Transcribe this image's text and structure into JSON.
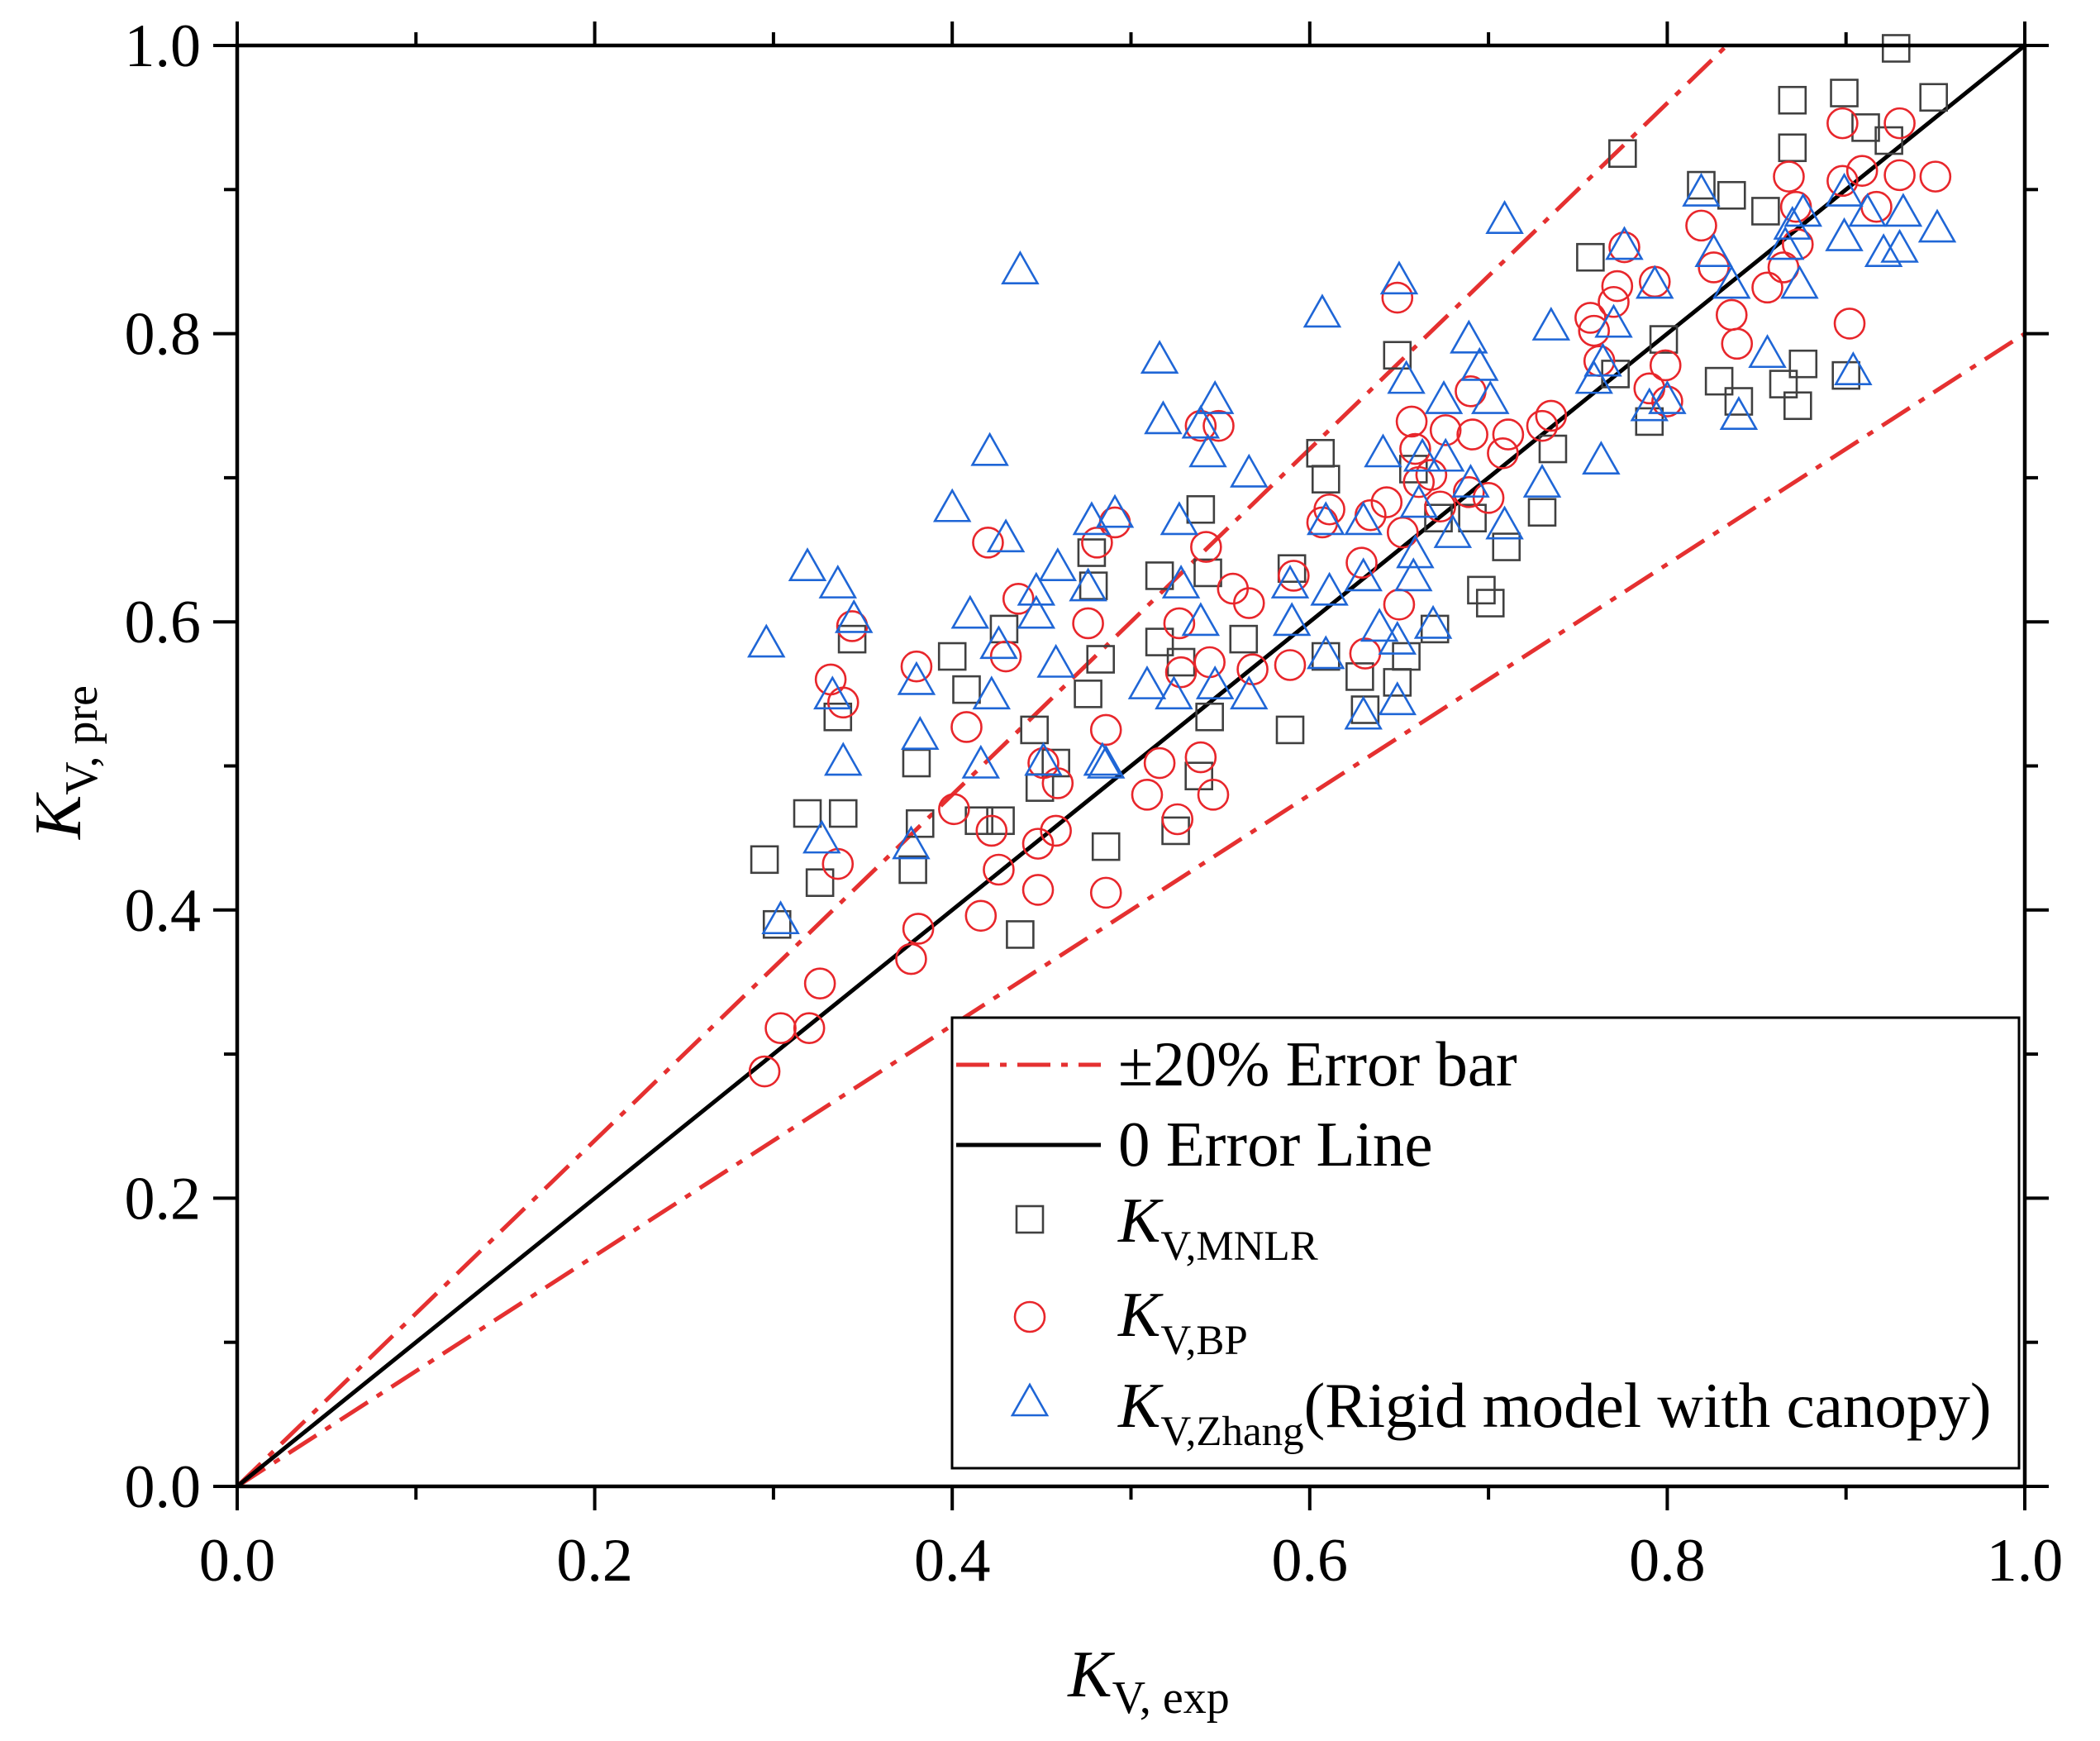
{
  "chart_data": {
    "type": "scatter",
    "xlabel": {
      "main": "K",
      "sub": "V, exp"
    },
    "ylabel": {
      "main": "K",
      "sub": "V, pre"
    },
    "xlim": [
      0.0,
      1.0
    ],
    "ylim": [
      0.0,
      1.0
    ],
    "xticks": {
      "values": [
        0.0,
        0.2,
        0.4,
        0.6,
        0.8,
        1.0
      ],
      "labels": [
        "0.0",
        "0.2",
        "0.4",
        "0.6",
        "0.8",
        "1.0"
      ]
    },
    "yticks": {
      "values": [
        0.0,
        0.2,
        0.4,
        0.6,
        0.8,
        1.0
      ],
      "labels": [
        "0.0",
        "0.2",
        "0.4",
        "0.6",
        "0.8",
        "1.0"
      ]
    },
    "minor_tick_step": 0.1,
    "grid": false,
    "legend": "bottom-right",
    "reference_lines": [
      {
        "label": "±20% Error bar",
        "color": "#e53030",
        "slopes": [
          1.2,
          0.8
        ]
      },
      {
        "label": "0 Error Line",
        "color": "#000000",
        "slopes": [
          1.0
        ]
      }
    ],
    "series": [
      {
        "label": {
          "main": "K",
          "sub": "V,MNLR"
        },
        "marker": "square",
        "color": "#404040",
        "points": [
          [
            0.295,
            0.435
          ],
          [
            0.302,
            0.39
          ],
          [
            0.319,
            0.467
          ],
          [
            0.326,
            0.419
          ],
          [
            0.339,
            0.467
          ],
          [
            0.344,
            0.588
          ],
          [
            0.336,
            0.534
          ],
          [
            0.38,
            0.502
          ],
          [
            0.378,
            0.428
          ],
          [
            0.382,
            0.46
          ],
          [
            0.4,
            0.576
          ],
          [
            0.408,
            0.553
          ],
          [
            0.415,
            0.462
          ],
          [
            0.427,
            0.462
          ],
          [
            0.429,
            0.595
          ],
          [
            0.438,
            0.383
          ],
          [
            0.446,
            0.525
          ],
          [
            0.449,
            0.485
          ],
          [
            0.458,
            0.502
          ],
          [
            0.476,
            0.55
          ],
          [
            0.479,
            0.625
          ],
          [
            0.483,
            0.574
          ],
          [
            0.486,
            0.444
          ],
          [
            0.478,
            0.648
          ],
          [
            0.516,
            0.632
          ],
          [
            0.516,
            0.586
          ],
          [
            0.525,
            0.455
          ],
          [
            0.528,
            0.572
          ],
          [
            0.539,
            0.678
          ],
          [
            0.543,
            0.634
          ],
          [
            0.538,
            0.493
          ],
          [
            0.544,
            0.534
          ],
          [
            0.563,
            0.588
          ],
          [
            0.589,
            0.525
          ],
          [
            0.59,
            0.637
          ],
          [
            0.606,
            0.717
          ],
          [
            0.609,
            0.699
          ],
          [
            0.609,
            0.576
          ],
          [
            0.628,
            0.562
          ],
          [
            0.631,
            0.539
          ],
          [
            0.649,
            0.785
          ],
          [
            0.649,
            0.558
          ],
          [
            0.654,
            0.576
          ],
          [
            0.658,
            0.706
          ],
          [
            0.67,
            0.595
          ],
          [
            0.672,
            0.672
          ],
          [
            0.691,
            0.672
          ],
          [
            0.696,
            0.622
          ],
          [
            0.701,
            0.613
          ],
          [
            0.71,
            0.652
          ],
          [
            0.73,
            0.676
          ],
          [
            0.736,
            0.72
          ],
          [
            0.757,
            0.853
          ],
          [
            0.775,
            0.925
          ],
          [
            0.771,
            0.772
          ],
          [
            0.79,
            0.739
          ],
          [
            0.798,
            0.796
          ],
          [
            0.819,
            0.903
          ],
          [
            0.829,
            0.767
          ],
          [
            0.836,
            0.896
          ],
          [
            0.84,
            0.753
          ],
          [
            0.855,
            0.885
          ],
          [
            0.865,
            0.765
          ],
          [
            0.87,
            0.962
          ],
          [
            0.87,
            0.929
          ],
          [
            0.873,
            0.75
          ],
          [
            0.876,
            0.779
          ],
          [
            0.899,
            0.967
          ],
          [
            0.9,
            0.771
          ],
          [
            0.911,
            0.943
          ],
          [
            0.928,
            0.998
          ],
          [
            0.924,
            0.934
          ],
          [
            0.949,
            0.964
          ]
        ]
      },
      {
        "label": {
          "main": "K",
          "sub": "V,BP"
        },
        "marker": "circle",
        "color": "#e8262b",
        "points": [
          [
            0.295,
            0.288
          ],
          [
            0.304,
            0.318
          ],
          [
            0.32,
            0.318
          ],
          [
            0.326,
            0.349
          ],
          [
            0.332,
            0.56
          ],
          [
            0.336,
            0.432
          ],
          [
            0.339,
            0.544
          ],
          [
            0.344,
            0.597
          ],
          [
            0.377,
            0.366
          ],
          [
            0.381,
            0.387
          ],
          [
            0.38,
            0.569
          ],
          [
            0.401,
            0.47
          ],
          [
            0.408,
            0.527
          ],
          [
            0.416,
            0.396
          ],
          [
            0.42,
            0.655
          ],
          [
            0.422,
            0.455
          ],
          [
            0.426,
            0.428
          ],
          [
            0.43,
            0.576
          ],
          [
            0.437,
            0.616
          ],
          [
            0.448,
            0.414
          ],
          [
            0.448,
            0.446
          ],
          [
            0.451,
            0.502
          ],
          [
            0.458,
            0.455
          ],
          [
            0.459,
            0.488
          ],
          [
            0.476,
            0.599
          ],
          [
            0.481,
            0.655
          ],
          [
            0.486,
            0.525
          ],
          [
            0.486,
            0.412
          ],
          [
            0.491,
            0.669
          ],
          [
            0.509,
            0.48
          ],
          [
            0.516,
            0.502
          ],
          [
            0.526,
            0.463
          ],
          [
            0.527,
            0.599
          ],
          [
            0.528,
            0.565
          ],
          [
            0.539,
            0.506
          ],
          [
            0.539,
            0.736
          ],
          [
            0.542,
            0.652
          ],
          [
            0.546,
            0.48
          ],
          [
            0.544,
            0.572
          ],
          [
            0.549,
            0.736
          ],
          [
            0.557,
            0.623
          ],
          [
            0.566,
            0.613
          ],
          [
            0.568,
            0.567
          ],
          [
            0.589,
            0.57
          ],
          [
            0.591,
            0.632
          ],
          [
            0.607,
            0.669
          ],
          [
            0.611,
            0.678
          ],
          [
            0.629,
            0.641
          ],
          [
            0.631,
            0.578
          ],
          [
            0.634,
            0.674
          ],
          [
            0.643,
            0.683
          ],
          [
            0.649,
            0.825
          ],
          [
            0.65,
            0.612
          ],
          [
            0.652,
            0.662
          ],
          [
            0.657,
            0.739
          ],
          [
            0.659,
            0.72
          ],
          [
            0.661,
            0.697
          ],
          [
            0.668,
            0.702
          ],
          [
            0.673,
            0.68
          ],
          [
            0.676,
            0.733
          ],
          [
            0.689,
            0.69
          ],
          [
            0.69,
            0.76
          ],
          [
            0.691,
            0.73
          ],
          [
            0.7,
            0.686
          ],
          [
            0.708,
            0.717
          ],
          [
            0.711,
            0.73
          ],
          [
            0.73,
            0.736
          ],
          [
            0.735,
            0.743
          ],
          [
            0.757,
            0.811
          ],
          [
            0.759,
            0.802
          ],
          [
            0.762,
            0.781
          ],
          [
            0.77,
            0.822
          ],
          [
            0.776,
            0.86
          ],
          [
            0.772,
            0.833
          ],
          [
            0.79,
            0.762
          ],
          [
            0.793,
            0.836
          ],
          [
            0.799,
            0.778
          ],
          [
            0.8,
            0.753
          ],
          [
            0.819,
            0.875
          ],
          [
            0.826,
            0.846
          ],
          [
            0.836,
            0.813
          ],
          [
            0.839,
            0.793
          ],
          [
            0.856,
            0.832
          ],
          [
            0.865,
            0.846
          ],
          [
            0.868,
            0.909
          ],
          [
            0.872,
            0.888
          ],
          [
            0.873,
            0.862
          ],
          [
            0.898,
            0.946
          ],
          [
            0.898,
            0.906
          ],
          [
            0.902,
            0.807
          ],
          [
            0.909,
            0.913
          ],
          [
            0.917,
            0.888
          ],
          [
            0.93,
            0.946
          ],
          [
            0.93,
            0.91
          ],
          [
            0.95,
            0.909
          ]
        ]
      },
      {
        "label": {
          "main": "K",
          "sub": "V,Zhang",
          "suffix": "(Rigid model with canopy)"
        },
        "marker": "triangle",
        "color": "#1f66d6",
        "points": [
          [
            0.296,
            0.584
          ],
          [
            0.304,
            0.392
          ],
          [
            0.319,
            0.637
          ],
          [
            0.327,
            0.448
          ],
          [
            0.333,
            0.548
          ],
          [
            0.336,
            0.625
          ],
          [
            0.339,
            0.502
          ],
          [
            0.345,
            0.601
          ],
          [
            0.377,
            0.444
          ],
          [
            0.38,
            0.558
          ],
          [
            0.382,
            0.52
          ],
          [
            0.4,
            0.678
          ],
          [
            0.41,
            0.604
          ],
          [
            0.416,
            0.5
          ],
          [
            0.421,
            0.717
          ],
          [
            0.422,
            0.548
          ],
          [
            0.426,
            0.583
          ],
          [
            0.43,
            0.657
          ],
          [
            0.438,
            0.843
          ],
          [
            0.447,
            0.62
          ],
          [
            0.447,
            0.604
          ],
          [
            0.451,
            0.502
          ],
          [
            0.458,
            0.57
          ],
          [
            0.459,
            0.637
          ],
          [
            0.476,
            0.623
          ],
          [
            0.478,
            0.669
          ],
          [
            0.484,
            0.502
          ],
          [
            0.486,
            0.5
          ],
          [
            0.491,
            0.674
          ],
          [
            0.509,
            0.555
          ],
          [
            0.516,
            0.781
          ],
          [
            0.518,
            0.739
          ],
          [
            0.524,
            0.548
          ],
          [
            0.527,
            0.669
          ],
          [
            0.528,
            0.625
          ],
          [
            0.539,
            0.599
          ],
          [
            0.539,
            0.736
          ],
          [
            0.543,
            0.716
          ],
          [
            0.547,
            0.753
          ],
          [
            0.547,
            0.555
          ],
          [
            0.566,
            0.702
          ],
          [
            0.566,
            0.548
          ],
          [
            0.589,
            0.625
          ],
          [
            0.59,
            0.599
          ],
          [
            0.607,
            0.813
          ],
          [
            0.609,
            0.669
          ],
          [
            0.609,
            0.576
          ],
          [
            0.611,
            0.62
          ],
          [
            0.63,
            0.669
          ],
          [
            0.63,
            0.63
          ],
          [
            0.63,
            0.534
          ],
          [
            0.641,
            0.716
          ],
          [
            0.639,
            0.595
          ],
          [
            0.649,
            0.586
          ],
          [
            0.649,
            0.544
          ],
          [
            0.65,
            0.836
          ],
          [
            0.654,
            0.767
          ],
          [
            0.658,
            0.63
          ],
          [
            0.659,
            0.646
          ],
          [
            0.661,
            0.681
          ],
          [
            0.663,
            0.713
          ],
          [
            0.669,
            0.597
          ],
          [
            0.675,
            0.753
          ],
          [
            0.676,
            0.713
          ],
          [
            0.68,
            0.66
          ],
          [
            0.689,
            0.795
          ],
          [
            0.69,
            0.695
          ],
          [
            0.695,
            0.776
          ],
          [
            0.701,
            0.753
          ],
          [
            0.709,
            0.666
          ],
          [
            0.709,
            0.878
          ],
          [
            0.73,
            0.695
          ],
          [
            0.735,
            0.804
          ],
          [
            0.759,
            0.767
          ],
          [
            0.763,
            0.711
          ],
          [
            0.764,
            0.779
          ],
          [
            0.77,
            0.806
          ],
          [
            0.776,
            0.86
          ],
          [
            0.79,
            0.748
          ],
          [
            0.793,
            0.833
          ],
          [
            0.8,
            0.753
          ],
          [
            0.819,
            0.897
          ],
          [
            0.826,
            0.855
          ],
          [
            0.836,
            0.833
          ],
          [
            0.84,
            0.742
          ],
          [
            0.856,
            0.785
          ],
          [
            0.866,
            0.86
          ],
          [
            0.87,
            0.874
          ],
          [
            0.874,
            0.833
          ],
          [
            0.876,
            0.883
          ],
          [
            0.899,
            0.866
          ],
          [
            0.899,
            0.897
          ],
          [
            0.904,
            0.773
          ],
          [
            0.912,
            0.883
          ],
          [
            0.921,
            0.855
          ],
          [
            0.93,
            0.858
          ],
          [
            0.932,
            0.883
          ],
          [
            0.951,
            0.872
          ]
        ]
      }
    ]
  }
}
